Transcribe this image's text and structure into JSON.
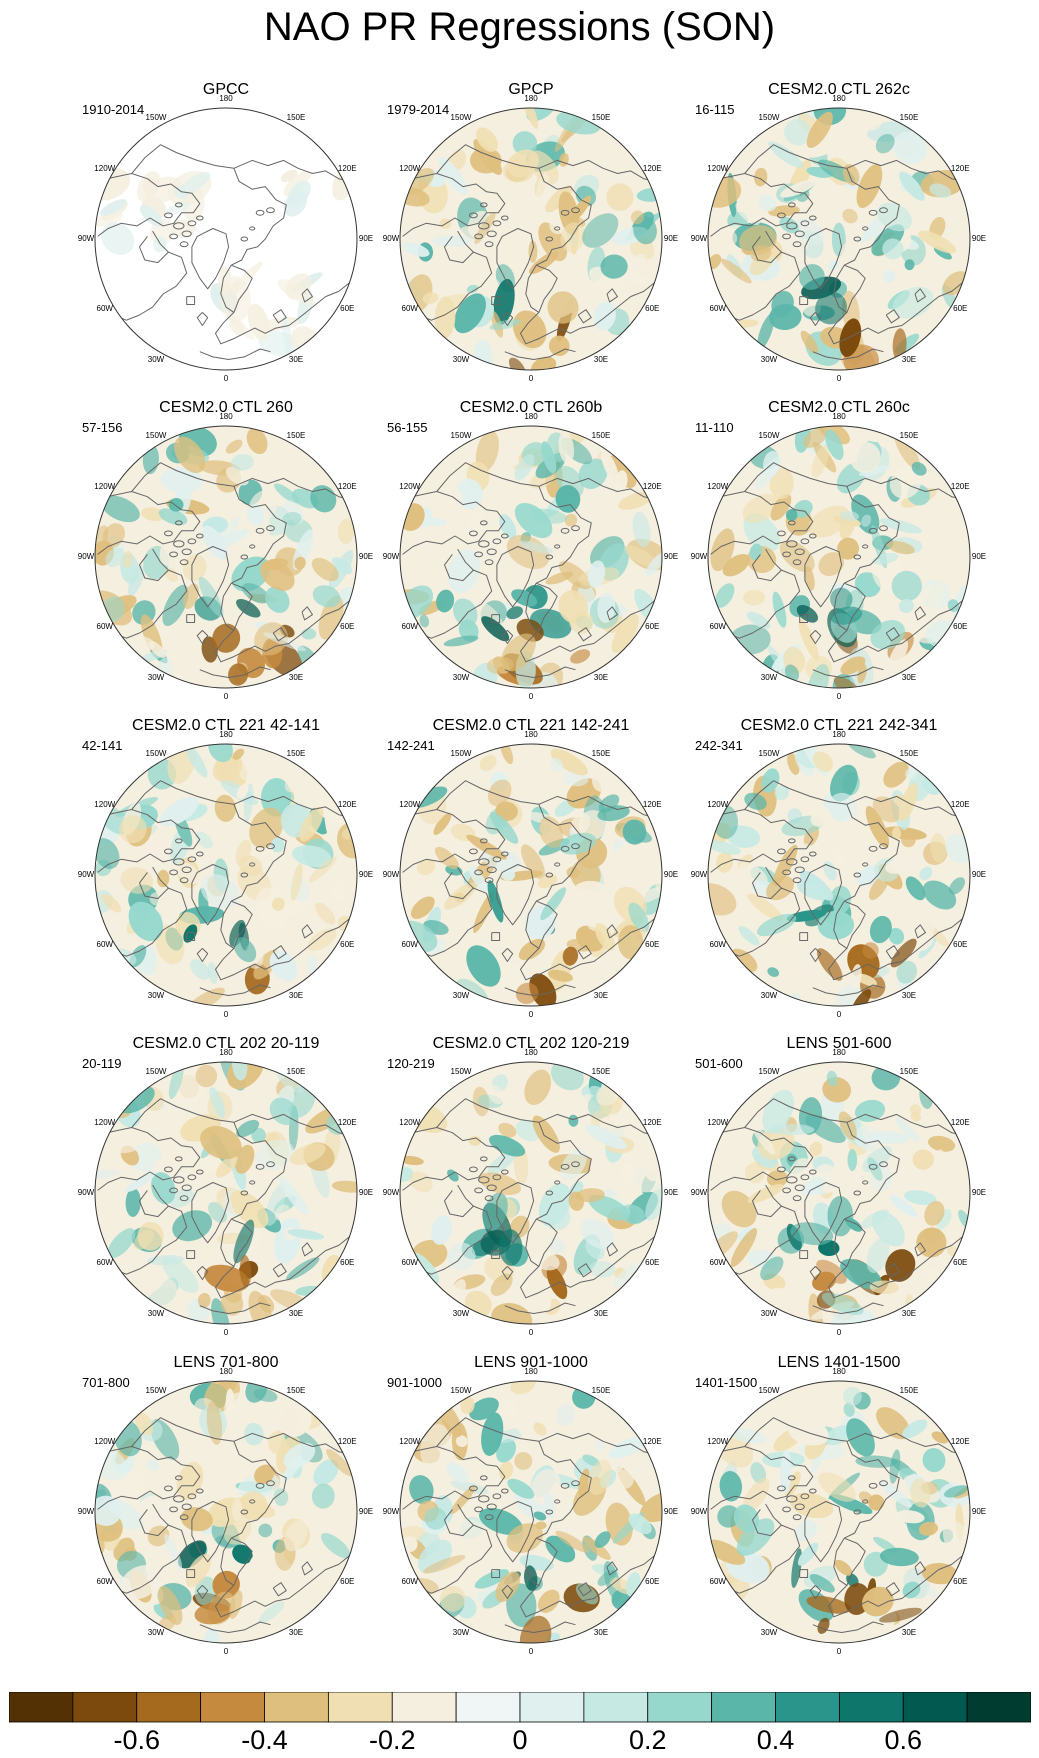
{
  "title": "NAO PR Regressions (SON)",
  "chart_data": {
    "type": "map",
    "projection": "polar stereographic, Northern Hemisphere",
    "variable": "PR regression on NAO",
    "season": "SON",
    "longitude_labels": [
      "180",
      "150E",
      "120E",
      "90E",
      "60E",
      "30E",
      "0",
      "30W",
      "60W",
      "90W",
      "120W",
      "150W"
    ],
    "panels": [
      {
        "title": "GPCC",
        "period": "1910-2014",
        "land_only": true
      },
      {
        "title": "GPCP",
        "period": "1979-2014"
      },
      {
        "title": "CESM2.0 CTL 262c",
        "period": "16-115"
      },
      {
        "title": "CESM2.0 CTL 260",
        "period": "57-156"
      },
      {
        "title": "CESM2.0 CTL 260b",
        "period": "56-155"
      },
      {
        "title": "CESM2.0 CTL 260c",
        "period": "11-110"
      },
      {
        "title": "CESM2.0 CTL 221 42-141",
        "period": "42-141"
      },
      {
        "title": "CESM2.0 CTL 221 142-241",
        "period": "142-241"
      },
      {
        "title": "CESM2.0 CTL 221 242-341",
        "period": "242-341"
      },
      {
        "title": "CESM2.0 CTL 202 20-119",
        "period": "20-119"
      },
      {
        "title": "CESM2.0 CTL 202 120-219",
        "period": "120-219"
      },
      {
        "title": "LENS 501-600",
        "period": "501-600"
      },
      {
        "title": "LENS 701-800",
        "period": "701-800"
      },
      {
        "title": "LENS 901-1000",
        "period": "901-1000"
      },
      {
        "title": "LENS 1401-1500",
        "period": "1401-1500"
      }
    ],
    "colorbar": {
      "levels": [
        -0.7,
        -0.6,
        -0.5,
        -0.4,
        -0.3,
        -0.2,
        -0.1,
        0,
        0.1,
        0.2,
        0.3,
        0.4,
        0.5,
        0.6,
        0.7
      ],
      "tick_labels": [
        "-0.6",
        "-0.4",
        "-0.2",
        "0",
        "0.2",
        "0.4",
        "0.6"
      ],
      "colors": [
        "#543005",
        "#7c4a0c",
        "#a66a1f",
        "#c68a3f",
        "#dfbf7e",
        "#f0dfb2",
        "#f5efe0",
        "#f0f6f5",
        "#e0f0ee",
        "#c6e9e4",
        "#97d8cd",
        "#5ab6a9",
        "#2a968b",
        "#0f766b",
        "#01594f",
        "#003c30"
      ]
    }
  }
}
